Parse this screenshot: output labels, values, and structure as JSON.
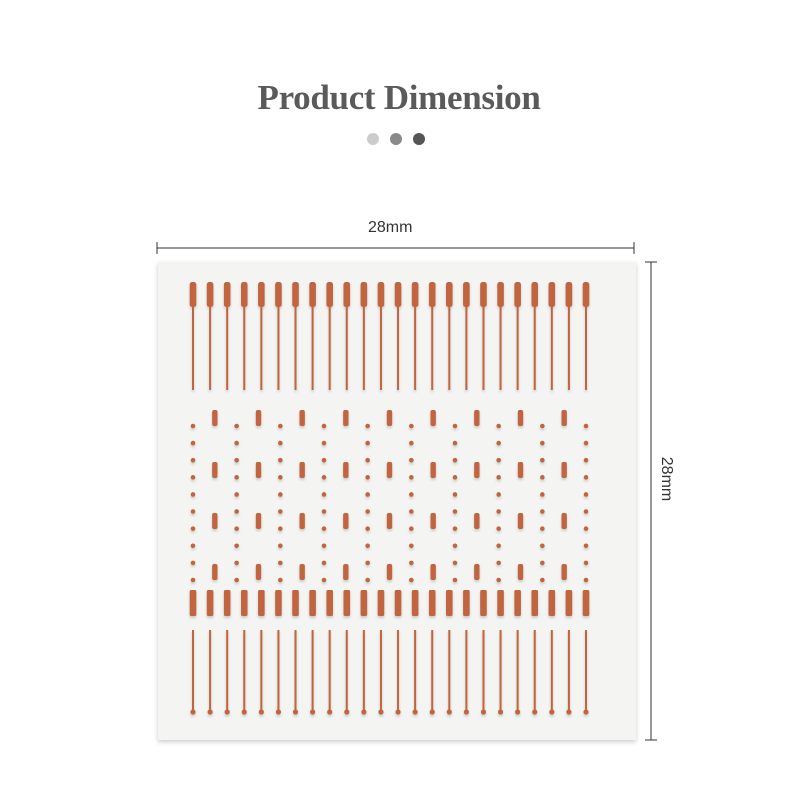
{
  "header": {
    "title": "Product Dimension",
    "pager_dots": [
      "#cccccc",
      "#8a8a8a",
      "#555555"
    ]
  },
  "dimensions": {
    "width_label": "28mm",
    "height_label": "28mm"
  },
  "colors": {
    "pattern": "#c0653f",
    "card": "#f4f4f2",
    "dimension_line": "#333333"
  },
  "pattern": {
    "needle_columns": 24,
    "dot_columns": 10,
    "dash_columns": 9,
    "dot_rows": 10,
    "dash_rows": 4
  }
}
